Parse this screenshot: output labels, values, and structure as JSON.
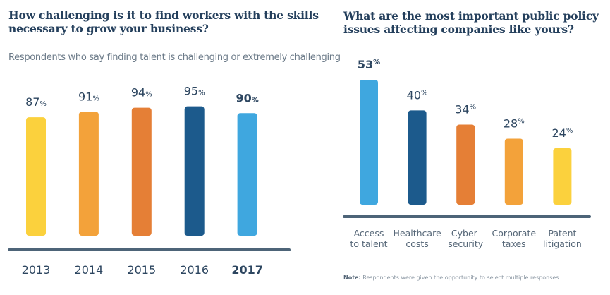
{
  "chart_data": [
    {
      "type": "bar",
      "title": "How challenging is it to find workers with the skills necessary to grow your business?",
      "subtitle": "Respondents who say finding talent is challenging or extremely challenging",
      "xlabel": "",
      "ylabel": "",
      "ylim": [
        0,
        100
      ],
      "grid": false,
      "categories": [
        "2013",
        "2014",
        "2015",
        "2016",
        "2017"
      ],
      "values": [
        87,
        91,
        94,
        95,
        90
      ],
      "value_labels": [
        "87",
        "91",
        "94",
        "95",
        "90"
      ],
      "value_suffix": "%",
      "highlight_index": 4,
      "colors": [
        "#fbd13d",
        "#f3a23a",
        "#e57f36",
        "#1c5a8c",
        "#3fa7df"
      ],
      "axis_color": "#4d6478"
    },
    {
      "type": "bar",
      "title": "What are the most important public policy issues affecting companies like yours?",
      "xlabel": "",
      "ylabel": "",
      "ylim": [
        0,
        60
      ],
      "grid": false,
      "categories": [
        [
          "Access",
          "to talent"
        ],
        [
          "Healthcare",
          "costs"
        ],
        [
          "Cyber-",
          "security"
        ],
        [
          "Corporate",
          "taxes"
        ],
        [
          "Patent",
          "litigation"
        ]
      ],
      "values": [
        53,
        40,
        34,
        28,
        24
      ],
      "value_labels": [
        "53",
        "40",
        "34",
        "28",
        "24"
      ],
      "value_suffix": "%",
      "highlight_index": 0,
      "colors": [
        "#3fa7df",
        "#1c5a8c",
        "#e57f36",
        "#f3a23a",
        "#fbd13d"
      ],
      "axis_color": "#4d6478",
      "note_label": "Note:",
      "note": "Respondents were given the opportunity to select multiple responses."
    }
  ]
}
